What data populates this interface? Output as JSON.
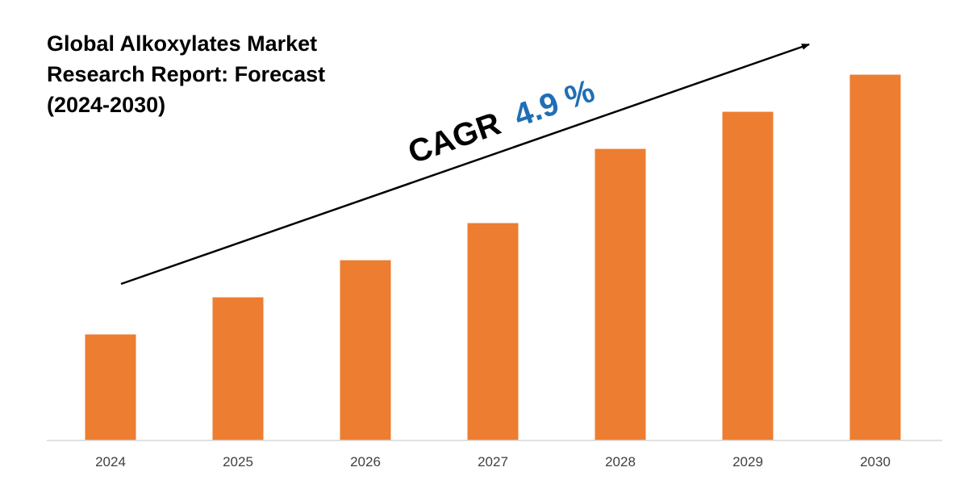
{
  "title_lines": [
    "Global Alkoxylates Market",
    "Research Report: Forecast",
    "(2024-2030)"
  ],
  "annotation": {
    "prefix": "CAGR",
    "value": "4.9 %"
  },
  "colors": {
    "bar": "#ED7D31",
    "cagr_value": "#1F6FB5",
    "text": "#000000",
    "axis": "#D9D9D9",
    "tick": "#404040"
  },
  "chart_data": {
    "type": "bar",
    "title": "Global Alkoxylates Market Research Report: Forecast (2024-2030)",
    "categories": [
      "2024",
      "2025",
      "2026",
      "2027",
      "2028",
      "2029",
      "2030"
    ],
    "values": [
      100,
      135,
      170,
      205,
      275,
      310,
      345
    ],
    "xlabel": "",
    "ylabel": "",
    "ylim": [
      0,
      350
    ],
    "grid": false,
    "legend": "none",
    "annotations": [
      "CAGR 4.9 %"
    ]
  }
}
